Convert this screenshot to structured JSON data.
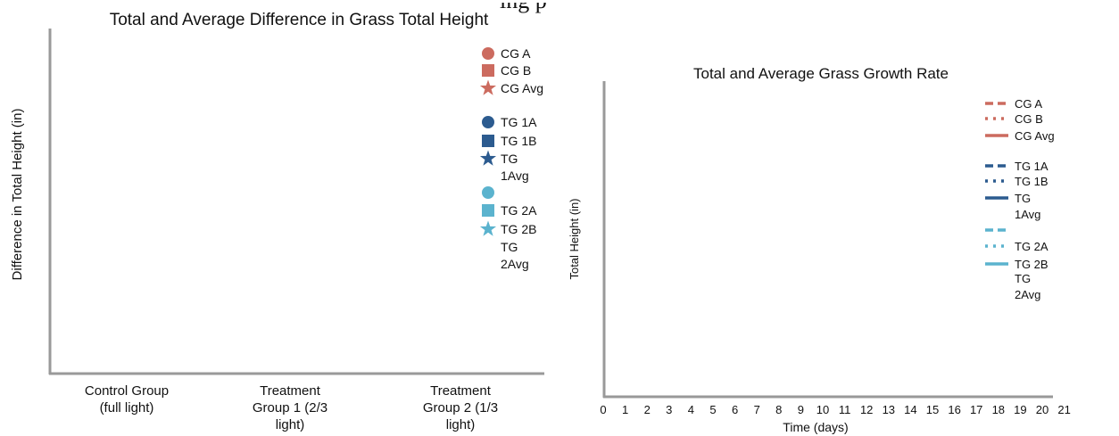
{
  "page": {
    "cropped_heading": "ing p"
  },
  "colors": {
    "cg": "#cc6b5f",
    "tg1": "#2c5b8f",
    "tg2": "#5bb3ce",
    "axis": "#999999"
  },
  "chart_data": [
    {
      "type": "scatter",
      "title": "Total and Average Difference in Grass Total Height",
      "xlabel": "",
      "ylabel": "Difference in Total Height (in)",
      "categories": [
        "Control Group (full light)",
        "Treatment Group 1 (2/3 light)",
        "Treatment Group 2 (1/3 light)"
      ],
      "category_lines": [
        [
          "Control Group",
          "(full light)"
        ],
        [
          "Treatment",
          "Group 1 (2/3",
          "light)"
        ],
        [
          "Treatment",
          "Group 2 (1/3",
          "light)"
        ]
      ],
      "grid": false,
      "legend_position": "top-right",
      "series": [
        {
          "name": "CG A",
          "marker": "circle",
          "color": "#cc6b5f",
          "values": []
        },
        {
          "name": "CG B",
          "marker": "square",
          "color": "#cc6b5f",
          "values": []
        },
        {
          "name": "CG Avg",
          "marker": "star",
          "color": "#cc6b5f",
          "values": []
        },
        {
          "name": "TG 1A",
          "marker": "circle",
          "color": "#2c5b8f",
          "values": []
        },
        {
          "name": "TG 1B",
          "marker": "square",
          "color": "#2c5b8f",
          "values": []
        },
        {
          "name": "TG 1Avg",
          "marker": "star",
          "color": "#2c5b8f",
          "values": []
        },
        {
          "name": "",
          "marker": "circle",
          "color": "#5bb3ce",
          "values": []
        },
        {
          "name": "TG 2A",
          "marker": "square",
          "color": "#5bb3ce",
          "values": []
        },
        {
          "name": "TG 2B",
          "marker": "star",
          "color": "#5bb3ce",
          "values": []
        },
        {
          "name": "TG 2Avg",
          "marker": "none",
          "color": "#5bb3ce",
          "values": []
        }
      ]
    },
    {
      "type": "line",
      "title": "Total and Average Grass Growth Rate",
      "xlabel": "Time (days)",
      "ylabel": "Total Height (in)",
      "x_ticks": [
        0,
        1,
        2,
        3,
        4,
        5,
        6,
        7,
        8,
        9,
        10,
        11,
        12,
        13,
        14,
        15,
        16,
        17,
        18,
        19,
        20,
        21
      ],
      "xlim": [
        0,
        21
      ],
      "grid": false,
      "legend_position": "top-right",
      "series": [
        {
          "name": "CG A",
          "dash": "dashed",
          "color": "#cc6b5f",
          "x": [],
          "y": []
        },
        {
          "name": "CG B",
          "dash": "dotted",
          "color": "#cc6b5f",
          "x": [],
          "y": []
        },
        {
          "name": "CG Avg",
          "dash": "solid",
          "color": "#cc6b5f",
          "x": [],
          "y": []
        },
        {
          "name": "TG 1A",
          "dash": "dashed",
          "color": "#2c5b8f",
          "x": [],
          "y": []
        },
        {
          "name": "TG 1B",
          "dash": "dotted",
          "color": "#2c5b8f",
          "x": [],
          "y": []
        },
        {
          "name": "TG 1Avg",
          "dash": "solid",
          "color": "#2c5b8f",
          "x": [],
          "y": []
        },
        {
          "name": "",
          "dash": "dashed",
          "color": "#5bb3ce",
          "x": [],
          "y": []
        },
        {
          "name": "TG 2A",
          "dash": "dotted",
          "color": "#5bb3ce",
          "x": [],
          "y": []
        },
        {
          "name": "TG 2B",
          "dash": "solid",
          "color": "#5bb3ce",
          "x": [],
          "y": []
        },
        {
          "name": "TG 2Avg",
          "dash": "none",
          "color": "#5bb3ce",
          "x": [],
          "y": []
        }
      ]
    }
  ]
}
